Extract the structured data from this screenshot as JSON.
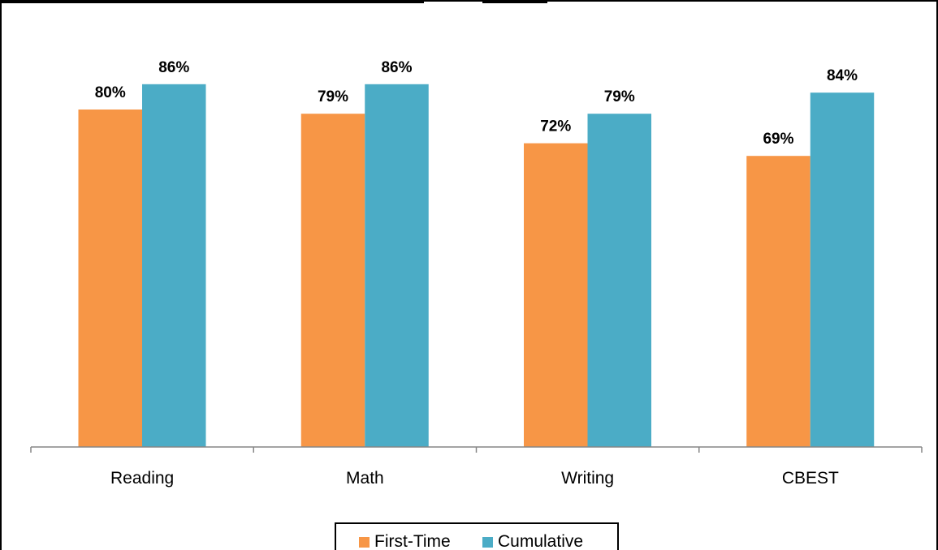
{
  "chart_data": {
    "type": "bar",
    "categories": [
      "Reading",
      "Math",
      "Writing",
      "CBEST"
    ],
    "series": [
      {
        "name": "First-Time",
        "values": [
          80,
          79,
          72,
          69
        ],
        "labels": [
          "80%",
          "79%",
          "72%",
          "69%"
        ],
        "color": "#F79646"
      },
      {
        "name": "Cumulative",
        "values": [
          86,
          86,
          79,
          84
        ],
        "labels": [
          "86%",
          "86%",
          "79%",
          "84%"
        ],
        "color": "#4BACC6"
      }
    ],
    "ylim": [
      0,
      100
    ],
    "grid": false,
    "legend_position": "bottom"
  }
}
